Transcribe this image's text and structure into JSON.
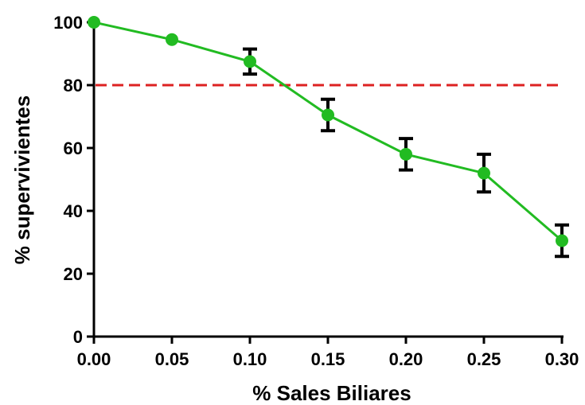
{
  "chart_data": {
    "type": "line",
    "title": "",
    "xlabel": "% Sales Biliares",
    "ylabel": "% supervivientes",
    "xlim": [
      0,
      0.3
    ],
    "ylim": [
      0,
      100
    ],
    "x_ticks": [
      "0.00",
      "0.05",
      "0.10",
      "0.15",
      "0.20",
      "0.25",
      "0.30"
    ],
    "y_ticks": [
      "0",
      "20",
      "40",
      "60",
      "80",
      "100"
    ],
    "grid": false,
    "series": [
      {
        "color": "#22bb22",
        "x": [
          0.0,
          0.05,
          0.1,
          0.15,
          0.2,
          0.25,
          0.3
        ],
        "y": [
          100,
          94.5,
          87.5,
          70.5,
          58,
          52,
          30.5
        ],
        "error": [
          0,
          0,
          4,
          5,
          5,
          6,
          5
        ]
      }
    ],
    "reference_line": {
      "y": 80,
      "color": "#dd2222",
      "style": "dashed"
    }
  }
}
